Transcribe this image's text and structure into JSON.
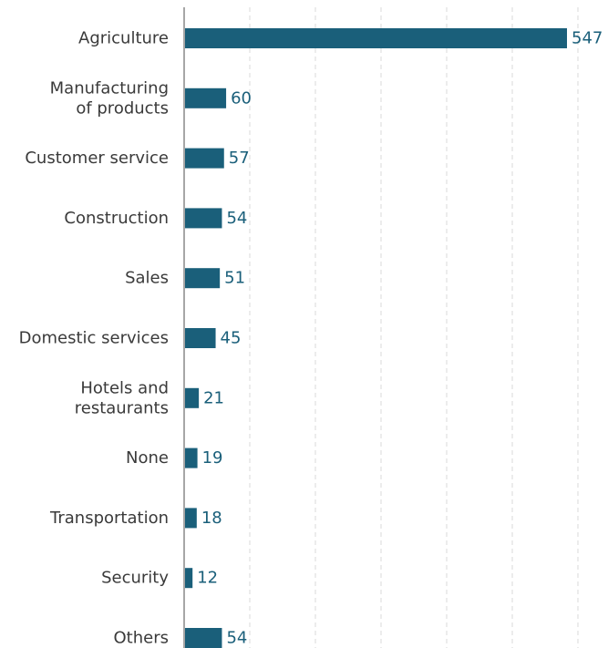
{
  "chart_data": {
    "type": "bar",
    "orientation": "horizontal",
    "categories": [
      "Agriculture",
      "Manufacturing of products",
      "Customer service",
      "Construction",
      "Sales",
      "Domestic services",
      "Hotels and restaurants",
      "None",
      "Transportation",
      "Security",
      "Others"
    ],
    "category_lines": [
      [
        "Agriculture"
      ],
      [
        "Manufacturing",
        "of products"
      ],
      [
        "Customer service"
      ],
      [
        "Construction"
      ],
      [
        "Sales"
      ],
      [
        "Domestic services"
      ],
      [
        "Hotels and",
        "restaurants"
      ],
      [
        "None"
      ],
      [
        "Transportation"
      ],
      [
        "Security"
      ],
      [
        "Others"
      ]
    ],
    "values": [
      547,
      60,
      57,
      54,
      51,
      45,
      21,
      19,
      18,
      12,
      54
    ],
    "data_labels": [
      "547",
      "60",
      "57",
      "54",
      "51",
      "45",
      "21",
      "19",
      "18",
      "12",
      "54"
    ],
    "title": "",
    "xlabel": "",
    "ylabel": "",
    "xlim": [
      0,
      560
    ],
    "grid": "vertical dashed",
    "legend": "none",
    "colors": {
      "bar": "#1a5f7a",
      "value_label": "#1a5f7a",
      "category_label": "#3a3a3a",
      "axis": "#a6a6a6",
      "grid": "#d9d9d9"
    }
  }
}
